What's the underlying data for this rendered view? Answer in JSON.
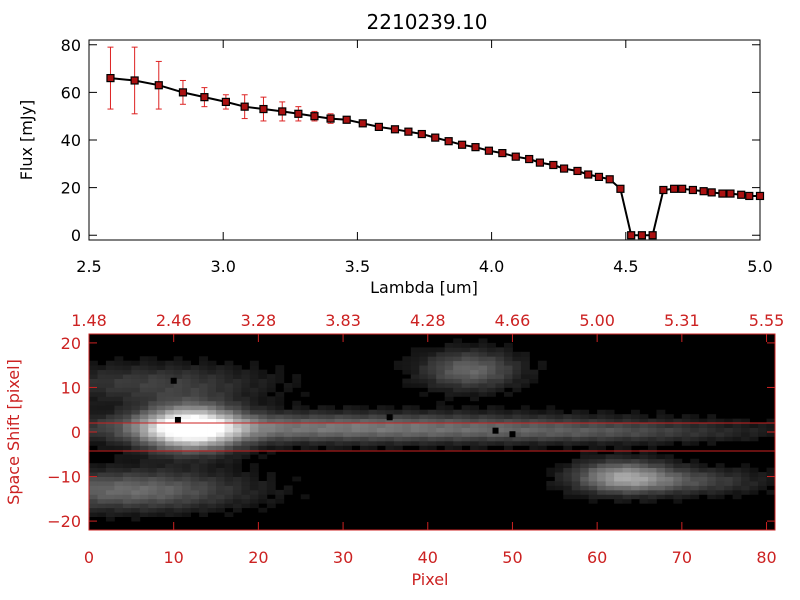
{
  "colors": {
    "axis_black": "#000000",
    "axis_red": "#cc2222",
    "marker_fill": "#aa1111",
    "errorbar": "#dd2222",
    "line": "#000000"
  },
  "chart_data": [
    {
      "type": "line",
      "title": "2210239.10",
      "xlabel": "Lambda [um]",
      "ylabel": "Flux [mJy]",
      "xlim": [
        2.5,
        5.0
      ],
      "ylim": [
        -2,
        82
      ],
      "xticks": [
        "2.5",
        "3.0",
        "3.5",
        "4.0",
        "4.5",
        "5.0"
      ],
      "yticks": [
        "0",
        "20",
        "40",
        "60",
        "80"
      ],
      "grid": false,
      "markers": "square",
      "series": [
        {
          "x": [
            2.58,
            2.67,
            2.76,
            2.85,
            2.93,
            3.01,
            3.08,
            3.15,
            3.22,
            3.28,
            3.34,
            3.4,
            3.46,
            3.52,
            3.58,
            3.64,
            3.69,
            3.74,
            3.79,
            3.84,
            3.89,
            3.94,
            3.99,
            4.04,
            4.09,
            4.14,
            4.18,
            4.23,
            4.27,
            4.32,
            4.36,
            4.4,
            4.44,
            4.48,
            4.52,
            4.56,
            4.6,
            4.64,
            4.68,
            4.71,
            4.75,
            4.79,
            4.82,
            4.86,
            4.89,
            4.93,
            4.96,
            5.0
          ],
          "y": [
            66,
            65,
            63,
            60,
            58,
            56,
            54,
            53,
            52,
            51,
            50,
            49,
            48.5,
            47,
            45.5,
            44.5,
            43.5,
            42.5,
            41,
            39.5,
            38,
            37,
            35.5,
            34.5,
            33,
            32,
            30.5,
            29.5,
            28,
            27,
            25.5,
            24.5,
            23.5,
            19.5,
            0,
            0,
            0,
            19,
            19.5,
            19.5,
            19,
            18.5,
            18,
            17.5,
            17.5,
            17,
            16.5,
            16.5
          ],
          "yerr": [
            13,
            14,
            10,
            5,
            4,
            3,
            5,
            5,
            4,
            3,
            2,
            2,
            1,
            1,
            1,
            1,
            1,
            1,
            1,
            1,
            1,
            1,
            1,
            1,
            1,
            1,
            1,
            1,
            1,
            1,
            1,
            1,
            1,
            1,
            0,
            0,
            0,
            1,
            1,
            1,
            1,
            1,
            1,
            1,
            1,
            1,
            1,
            1
          ]
        }
      ]
    },
    {
      "type": "heatmap",
      "xlabel": "Pixel",
      "ylabel": "Space Shift [pixel]",
      "xlim": [
        0,
        81
      ],
      "ylim": [
        -22,
        22
      ],
      "xticks": [
        "0",
        "10",
        "20",
        "30",
        "40",
        "50",
        "60",
        "70",
        "80"
      ],
      "yticks": [
        "−20",
        "−10",
        "0",
        "10",
        "20"
      ],
      "top_ticks": [
        "1.48",
        "2.46",
        "3.28",
        "3.83",
        "4.28",
        "4.66",
        "5.00",
        "5.31",
        "5.55"
      ],
      "extraction_window": [
        -3,
        3
      ],
      "colormap": "grayscale",
      "features": [
        {
          "x": 12,
          "y": 1,
          "peak": 1.0,
          "sx": 4,
          "sy": 3.5
        },
        {
          "x": 30,
          "y": 1,
          "peak": 0.45,
          "sx": 22,
          "sy": 2.2
        },
        {
          "x": 62,
          "y": 0,
          "peak": 0.16,
          "sx": 12,
          "sy": 1.5
        },
        {
          "x": 45,
          "y": 14,
          "peak": 0.38,
          "sx": 4,
          "sy": 3
        },
        {
          "x": 8,
          "y": 11,
          "peak": 0.22,
          "sx": 9,
          "sy": 3
        },
        {
          "x": 5,
          "y": -13,
          "peak": 0.4,
          "sx": 9,
          "sy": 3
        },
        {
          "x": 63,
          "y": -10,
          "peak": 0.55,
          "sx": 4,
          "sy": 2.5
        },
        {
          "x": 71,
          "y": -11,
          "peak": 0.25,
          "sx": 6,
          "sy": 2
        }
      ]
    }
  ]
}
